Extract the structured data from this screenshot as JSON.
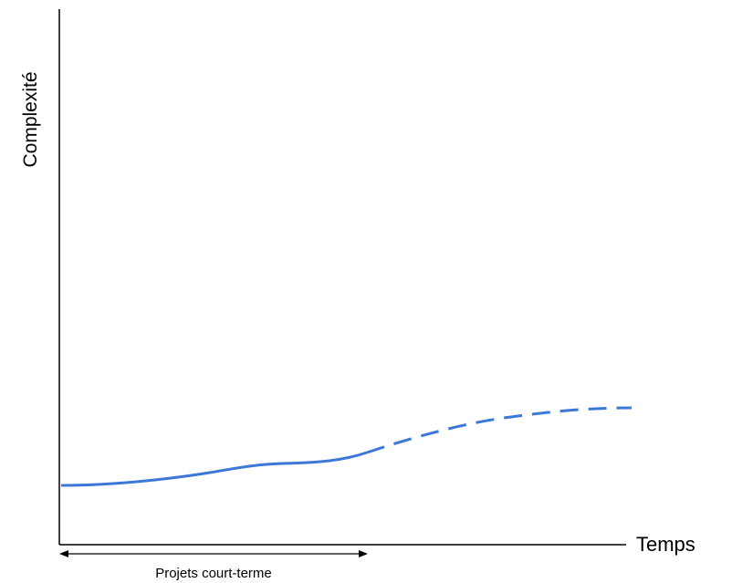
{
  "diagram": {
    "y_axis_label": "Complexité",
    "x_axis_label": "Temps",
    "span_label": "Projets court-terme",
    "curve_color": "#3c78d8",
    "curve_segments": [
      {
        "style": "solid",
        "description_level": "low, gently rising"
      },
      {
        "style": "dashed",
        "description_level": "rising then leveling off"
      }
    ]
  }
}
